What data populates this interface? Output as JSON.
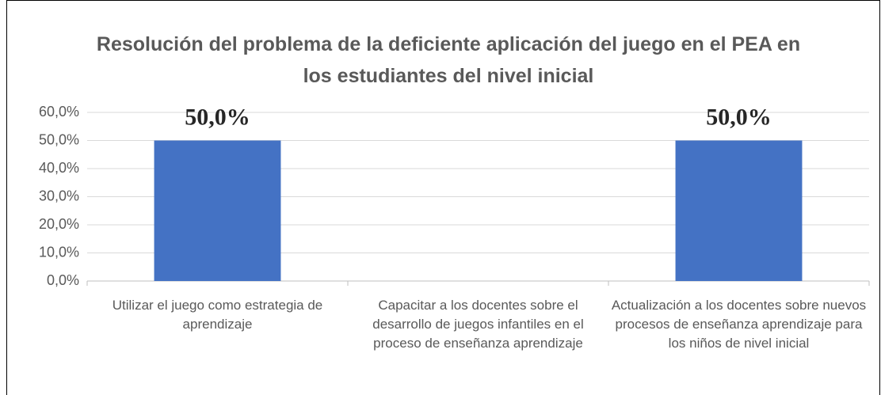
{
  "chart_data": {
    "type": "bar",
    "title": "Resolución del problema de la deficiente aplicación del juego en el PEA en los estudiantes del nivel inicial",
    "categories": [
      "Utilizar el juego como estrategia de aprendizaje",
      "Capacitar a los docentes sobre el desarrollo de juegos infantiles en el proceso de enseñanza aprendizaje",
      "Actualización a los docentes sobre nuevos procesos de enseñanza aprendizaje para los niños de nivel inicial"
    ],
    "values": [
      50,
      0,
      50
    ],
    "value_labels": [
      "50,0%",
      null,
      "50,0%"
    ],
    "color": "#4472c4",
    "ylim": [
      0,
      60
    ],
    "yticks": [
      {
        "value": 0,
        "label": "0,0%"
      },
      {
        "value": 10,
        "label": "10,0%"
      },
      {
        "value": 20,
        "label": "20,0%"
      },
      {
        "value": 30,
        "label": "30,0%"
      },
      {
        "value": 40,
        "label": "40,0%"
      },
      {
        "value": 50,
        "label": "50,0%"
      },
      {
        "value": 60,
        "label": "60,0%"
      }
    ],
    "grid": true
  }
}
